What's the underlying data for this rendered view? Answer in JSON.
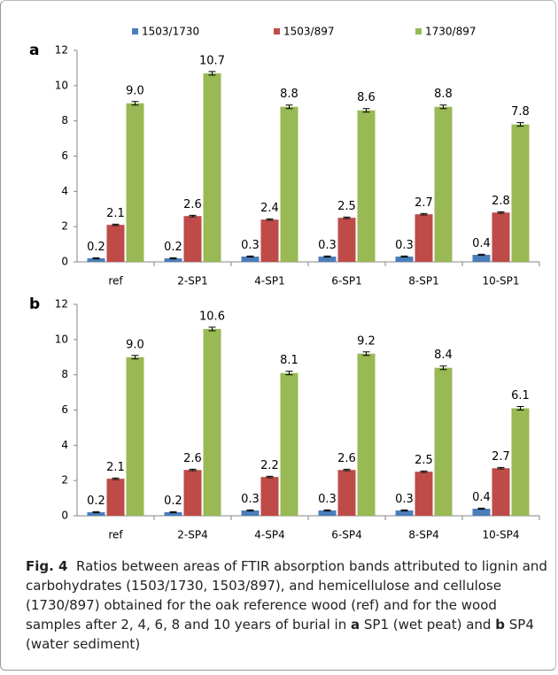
{
  "chart_data": [
    {
      "type": "bar",
      "panel": "a",
      "categories": [
        "ref",
        "2-SP1",
        "4-SP1",
        "6-SP1",
        "8-SP1",
        "10-SP1"
      ],
      "ylim": [
        0,
        12
      ],
      "yticks": [
        0,
        2,
        4,
        6,
        8,
        10,
        12
      ],
      "grid": false,
      "legend": "top",
      "series": [
        {
          "name": "1503/1730",
          "color": "#4a7ebb",
          "values": [
            0.2,
            0.2,
            0.3,
            0.3,
            0.3,
            0.4
          ],
          "errors": [
            0.03,
            0.03,
            0.03,
            0.03,
            0.03,
            0.03
          ]
        },
        {
          "name": "1503/897",
          "color": "#be4b48",
          "values": [
            2.1,
            2.6,
            2.4,
            2.5,
            2.7,
            2.8
          ],
          "errors": [
            0.04,
            0.04,
            0.04,
            0.04,
            0.04,
            0.04
          ]
        },
        {
          "name": "1730/897",
          "color": "#98b954",
          "values": [
            9.0,
            10.7,
            8.8,
            8.6,
            8.8,
            7.8
          ],
          "value_labels": [
            "9.0",
            "10.7",
            "8.8",
            "8.6",
            "8.8",
            "7.8"
          ],
          "errors": [
            0.1,
            0.1,
            0.1,
            0.1,
            0.1,
            0.1
          ]
        }
      ]
    },
    {
      "type": "bar",
      "panel": "b",
      "categories": [
        "ref",
        "2-SP4",
        "4-SP4",
        "6-SP4",
        "8-SP4",
        "10-SP4"
      ],
      "ylim": [
        0,
        12
      ],
      "yticks": [
        0,
        2,
        4,
        6,
        8,
        10,
        12
      ],
      "grid": false,
      "series": [
        {
          "color": "#4a7ebb",
          "values": [
            0.2,
            0.2,
            0.3,
            0.3,
            0.3,
            0.4
          ],
          "errors": [
            0.03,
            0.03,
            0.03,
            0.03,
            0.03,
            0.03
          ]
        },
        {
          "color": "#be4b48",
          "values": [
            2.1,
            2.6,
            2.2,
            2.6,
            2.5,
            2.7
          ],
          "errors": [
            0.04,
            0.04,
            0.04,
            0.04,
            0.04,
            0.04
          ]
        },
        {
          "color": "#98b954",
          "values": [
            9.0,
            10.6,
            8.1,
            9.2,
            8.4,
            6.1
          ],
          "value_labels": [
            "9.0",
            "10.6",
            "8.1",
            "9.2",
            "8.4",
            "6.1"
          ],
          "errors": [
            0.1,
            0.1,
            0.1,
            0.1,
            0.1,
            0.1
          ]
        }
      ]
    }
  ],
  "caption": {
    "label": "Fig. 4",
    "text_1": "Ratios between areas of FTIR absorption bands attributed to lignin and carbohydrates (1503/1730, 1503/897), and hemicellulose and cellulose (1730/897) obtained for the oak reference wood (ref) and for the wood samples after 2, 4, 6, 8 and 10 years of burial in",
    "panel_a": "a",
    "text_2": "SP1 (wet peat) and",
    "panel_b": "b",
    "text_3": "SP4 (water sediment)"
  }
}
